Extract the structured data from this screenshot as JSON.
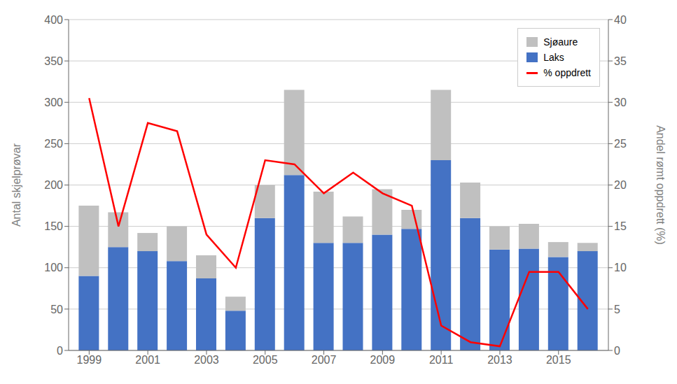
{
  "chart_data": {
    "type": "bar",
    "stacked": true,
    "x": [
      1999,
      2000,
      2001,
      2002,
      2003,
      2004,
      2005,
      2006,
      2007,
      2008,
      2009,
      2010,
      2011,
      2012,
      2013,
      2014,
      2015,
      2016
    ],
    "series": [
      {
        "name": "Laks",
        "type": "bar",
        "color": "#4472C4",
        "values": [
          90,
          125,
          120,
          108,
          87,
          48,
          160,
          212,
          130,
          130,
          140,
          147,
          230,
          160,
          122,
          123,
          113,
          120
        ]
      },
      {
        "name": "Sjøaure",
        "type": "bar",
        "color": "#C0C0C0",
        "values": [
          85,
          42,
          22,
          42,
          28,
          17,
          40,
          103,
          62,
          32,
          55,
          23,
          85,
          43,
          28,
          30,
          18,
          10
        ]
      },
      {
        "name": "% oppdrett",
        "type": "line",
        "axis": "y2",
        "color": "#FF0000",
        "values": [
          30.5,
          15,
          27.5,
          26.5,
          14,
          10,
          23,
          22.5,
          19,
          21.5,
          19,
          17.5,
          3,
          1,
          0.5,
          9.5,
          9.5,
          5
        ]
      }
    ],
    "ylabel": "Antal skjelprøvar",
    "y2label": "Andel rømt oppdrett (%)",
    "xlim": [
      1998.3,
      2016.7
    ],
    "xticks": [
      1999,
      2001,
      2003,
      2005,
      2007,
      2009,
      2011,
      2013,
      2015
    ],
    "ylim": [
      0,
      400
    ],
    "yticks": [
      0,
      50,
      100,
      150,
      200,
      250,
      300,
      350,
      400
    ],
    "y2lim": [
      0,
      40
    ],
    "y2ticks": [
      0,
      5,
      10,
      15,
      20,
      25,
      30,
      35,
      40
    ],
    "grid": true,
    "legend": "upper right"
  }
}
